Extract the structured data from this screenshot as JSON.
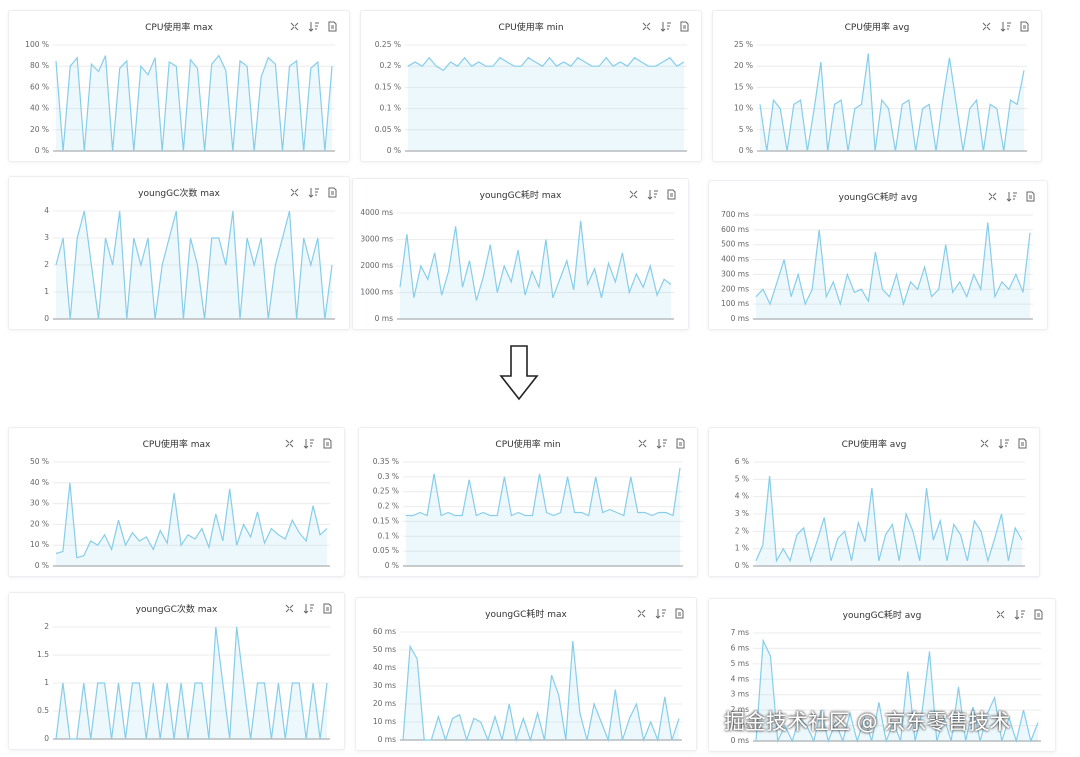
{
  "chart_data": [
    {
      "type": "line",
      "title": "CPU使用率 max",
      "color": "#87cdea",
      "ylim": [
        0,
        100
      ],
      "yticks": [
        {
          "value": 0,
          "label": "0 %"
        },
        {
          "value": 20,
          "label": "20 %"
        },
        {
          "value": 40,
          "label": "40 %"
        },
        {
          "value": 60,
          "label": "60 %"
        },
        {
          "value": 80,
          "label": "80 %"
        },
        {
          "value": 100,
          "label": "100 %"
        }
      ],
      "values": [
        85,
        0,
        80,
        88,
        0,
        82,
        75,
        90,
        0,
        78,
        85,
        0,
        80,
        72,
        88,
        0,
        84,
        80,
        0,
        86,
        78,
        0,
        82,
        90,
        76,
        0,
        85,
        80,
        0,
        70,
        88,
        82,
        0,
        80,
        85,
        0,
        78,
        84,
        0,
        80
      ]
    },
    {
      "type": "line",
      "title": "CPU使用率 min",
      "color": "#87cdea",
      "ylim": [
        0,
        0.25
      ],
      "yticks": [
        {
          "value": 0,
          "label": "0 %"
        },
        {
          "value": 0.05,
          "label": "0.05 %"
        },
        {
          "value": 0.1,
          "label": "0.1 %"
        },
        {
          "value": 0.15,
          "label": "0.15 %"
        },
        {
          "value": 0.2,
          "label": "0.2 %"
        },
        {
          "value": 0.25,
          "label": "0.25 %"
        }
      ],
      "values": [
        0.2,
        0.21,
        0.2,
        0.22,
        0.2,
        0.19,
        0.21,
        0.2,
        0.22,
        0.2,
        0.21,
        0.2,
        0.2,
        0.22,
        0.21,
        0.2,
        0.2,
        0.22,
        0.21,
        0.2,
        0.22,
        0.2,
        0.21,
        0.2,
        0.22,
        0.21,
        0.2,
        0.2,
        0.22,
        0.2,
        0.21,
        0.2,
        0.22,
        0.21,
        0.2,
        0.2,
        0.21,
        0.22,
        0.2,
        0.21
      ]
    },
    {
      "type": "line",
      "title": "CPU使用率 avg",
      "color": "#87cdea",
      "ylim": [
        0,
        25
      ],
      "yticks": [
        {
          "value": 0,
          "label": "0 %"
        },
        {
          "value": 5,
          "label": "5 %"
        },
        {
          "value": 10,
          "label": "10 %"
        },
        {
          "value": 15,
          "label": "15 %"
        },
        {
          "value": 20,
          "label": "20 %"
        },
        {
          "value": 25,
          "label": "25 %"
        }
      ],
      "values": [
        11,
        0,
        12,
        10,
        0,
        11,
        12,
        0,
        10,
        21,
        0,
        11,
        12,
        0,
        10,
        11,
        23,
        0,
        12,
        10,
        0,
        11,
        12,
        0,
        10,
        11,
        0,
        12,
        22,
        11,
        0,
        10,
        12,
        0,
        11,
        10,
        0,
        12,
        11,
        19
      ]
    },
    {
      "type": "line",
      "title": "youngGC次数 max",
      "color": "#87cdea",
      "ylim": [
        0,
        4
      ],
      "yticks": [
        0,
        1,
        2,
        3,
        4
      ],
      "values": [
        2,
        3,
        0,
        3,
        4,
        2,
        0,
        3,
        2,
        4,
        0,
        3,
        2,
        3,
        0,
        2,
        3,
        4,
        0,
        3,
        2,
        0,
        3,
        3,
        2,
        4,
        0,
        3,
        2,
        3,
        0,
        2,
        3,
        4,
        0,
        3,
        2,
        3,
        0,
        2
      ]
    },
    {
      "type": "line",
      "title": "youngGC耗时 max",
      "color": "#87cdea",
      "ylim": [
        0,
        4000
      ],
      "yticks": [
        {
          "value": 0,
          "label": "0 ms"
        },
        {
          "value": 1000,
          "label": "1000 ms"
        },
        {
          "value": 2000,
          "label": "2000 ms"
        },
        {
          "value": 3000,
          "label": "3000 ms"
        },
        {
          "value": 4000,
          "label": "4000 ms"
        }
      ],
      "values": [
        1200,
        3200,
        800,
        2000,
        1500,
        2500,
        900,
        1800,
        3500,
        1200,
        2200,
        700,
        1600,
        2800,
        1000,
        2000,
        1400,
        2600,
        900,
        1800,
        1200,
        3000,
        800,
        1500,
        2200,
        1100,
        3700,
        1300,
        1900,
        800,
        2100,
        1400,
        2500,
        1000,
        1700,
        1200,
        2000,
        900,
        1500,
        1300
      ]
    },
    {
      "type": "line",
      "title": "youngGC耗时 avg",
      "color": "#87cdea",
      "ylim": [
        0,
        700
      ],
      "yticks": [
        {
          "value": 0,
          "label": "0 ms"
        },
        {
          "value": 100,
          "label": "100 ms"
        },
        {
          "value": 200,
          "label": "200 ms"
        },
        {
          "value": 300,
          "label": "300 ms"
        },
        {
          "value": 400,
          "label": "400 ms"
        },
        {
          "value": 500,
          "label": "500 ms"
        },
        {
          "value": 600,
          "label": "600 ms"
        },
        {
          "value": 700,
          "label": "700 ms"
        }
      ],
      "values": [
        150,
        200,
        100,
        250,
        400,
        150,
        300,
        100,
        200,
        600,
        150,
        250,
        100,
        300,
        180,
        200,
        120,
        450,
        200,
        150,
        300,
        100,
        250,
        200,
        350,
        150,
        200,
        500,
        180,
        250,
        150,
        300,
        200,
        650,
        150,
        250,
        200,
        300,
        180,
        580
      ]
    },
    {
      "type": "line",
      "title": "CPU使用率 max",
      "color": "#87cdea",
      "ylim": [
        0,
        50
      ],
      "yticks": [
        {
          "value": 0,
          "label": "0 %"
        },
        {
          "value": 10,
          "label": "10 %"
        },
        {
          "value": 20,
          "label": "20 %"
        },
        {
          "value": 30,
          "label": "30 %"
        },
        {
          "value": 40,
          "label": "40 %"
        },
        {
          "value": 50,
          "label": "50 %"
        }
      ],
      "values": [
        6,
        7,
        40,
        4,
        5,
        12,
        10,
        15,
        8,
        22,
        10,
        16,
        12,
        14,
        8,
        17,
        11,
        35,
        10,
        15,
        13,
        18,
        9,
        25,
        12,
        37,
        10,
        20,
        14,
        26,
        11,
        18,
        15,
        13,
        22,
        16,
        12,
        29,
        15,
        18
      ]
    },
    {
      "type": "line",
      "title": "CPU使用率 min",
      "color": "#87cdea",
      "ylim": [
        0,
        0.35
      ],
      "yticks": [
        {
          "value": 0,
          "label": "0 %"
        },
        {
          "value": 0.05,
          "label": "0.05 %"
        },
        {
          "value": 0.1,
          "label": "0.1 %"
        },
        {
          "value": 0.15,
          "label": "0.15 %"
        },
        {
          "value": 0.2,
          "label": "0.2 %"
        },
        {
          "value": 0.25,
          "label": "0.25 %"
        },
        {
          "value": 0.3,
          "label": "0.3 %"
        },
        {
          "value": 0.35,
          "label": "0.35 %"
        }
      ],
      "values": [
        0.17,
        0.17,
        0.18,
        0.17,
        0.31,
        0.17,
        0.18,
        0.17,
        0.17,
        0.29,
        0.17,
        0.18,
        0.17,
        0.17,
        0.3,
        0.17,
        0.18,
        0.17,
        0.17,
        0.31,
        0.18,
        0.17,
        0.18,
        0.3,
        0.18,
        0.18,
        0.17,
        0.3,
        0.18,
        0.19,
        0.18,
        0.17,
        0.3,
        0.18,
        0.18,
        0.17,
        0.18,
        0.18,
        0.17,
        0.33
      ]
    },
    {
      "type": "line",
      "title": "CPU使用率 avg",
      "color": "#87cdea",
      "ylim": [
        0,
        6
      ],
      "yticks": [
        {
          "value": 0,
          "label": "0 %"
        },
        {
          "value": 1,
          "label": "1 %"
        },
        {
          "value": 2,
          "label": "2 %"
        },
        {
          "value": 3,
          "label": "3 %"
        },
        {
          "value": 4,
          "label": "4 %"
        },
        {
          "value": 5,
          "label": "5 %"
        },
        {
          "value": 6,
          "label": "6 %"
        }
      ],
      "values": [
        0.3,
        1.2,
        5.2,
        0.3,
        1,
        0.3,
        1.8,
        2.2,
        0.3,
        1.5,
        2.8,
        0.3,
        1.6,
        2,
        0.3,
        2.5,
        1.4,
        4.5,
        0.3,
        1.8,
        2.4,
        0.3,
        3,
        2,
        0.3,
        4.5,
        1.5,
        2.6,
        0.3,
        2.4,
        1.8,
        0.3,
        2.6,
        2,
        0.3,
        1.6,
        3,
        0.3,
        2.2,
        1.5
      ]
    },
    {
      "type": "line",
      "title": "youngGC次数 max",
      "color": "#87cdea",
      "ylim": [
        0,
        2
      ],
      "yticks": [
        0,
        0.5,
        1,
        1.5,
        2
      ],
      "values": [
        0,
        1,
        0,
        0,
        1,
        0,
        1,
        1,
        0,
        1,
        0,
        1,
        1,
        0,
        1,
        0,
        1,
        0,
        1,
        0,
        1,
        1,
        0,
        2,
        1,
        0,
        2,
        1,
        0,
        1,
        1,
        0,
        1,
        0,
        1,
        1,
        0,
        1,
        0,
        1
      ]
    },
    {
      "type": "line",
      "title": "youngGC耗时 max",
      "color": "#87cdea",
      "ylim": [
        0,
        60
      ],
      "yticks": [
        {
          "value": 0,
          "label": "0 ms"
        },
        {
          "value": 10,
          "label": "10 ms"
        },
        {
          "value": 20,
          "label": "20 ms"
        },
        {
          "value": 30,
          "label": "30 ms"
        },
        {
          "value": 40,
          "label": "40 ms"
        },
        {
          "value": 50,
          "label": "50 ms"
        },
        {
          "value": 60,
          "label": "60 ms"
        }
      ],
      "values": [
        0,
        52,
        45,
        0,
        0,
        13,
        0,
        12,
        14,
        0,
        12,
        10,
        0,
        13,
        0,
        20,
        0,
        12,
        0,
        15,
        0,
        36,
        25,
        0,
        55,
        15,
        0,
        20,
        10,
        0,
        28,
        0,
        12,
        20,
        0,
        10,
        0,
        24,
        0,
        12
      ]
    },
    {
      "type": "line",
      "title": "youngGC耗时 avg",
      "color": "#87cdea",
      "ylim": [
        0,
        7
      ],
      "yticks": [
        {
          "value": 0,
          "label": "0 ms"
        },
        {
          "value": 1,
          "label": "1 ms"
        },
        {
          "value": 2,
          "label": "2 ms"
        },
        {
          "value": 3,
          "label": "3 ms"
        },
        {
          "value": 4,
          "label": "4 ms"
        },
        {
          "value": 5,
          "label": "5 ms"
        },
        {
          "value": 6,
          "label": "6 ms"
        },
        {
          "value": 7,
          "label": "7 ms"
        }
      ],
      "values": [
        0,
        6.5,
        5.5,
        0,
        1,
        0,
        1.5,
        1,
        0,
        2,
        0,
        1.2,
        0,
        1.8,
        0,
        1.5,
        0,
        2.5,
        0,
        1.2,
        0,
        4.5,
        0,
        2,
        5.8,
        0,
        1.5,
        0,
        3.5,
        0,
        2.2,
        0,
        1.8,
        2.8,
        0,
        1.5,
        0,
        2,
        0,
        1.2
      ]
    }
  ],
  "footer_text": "掘金技术社区 @ 京东零售技术"
}
